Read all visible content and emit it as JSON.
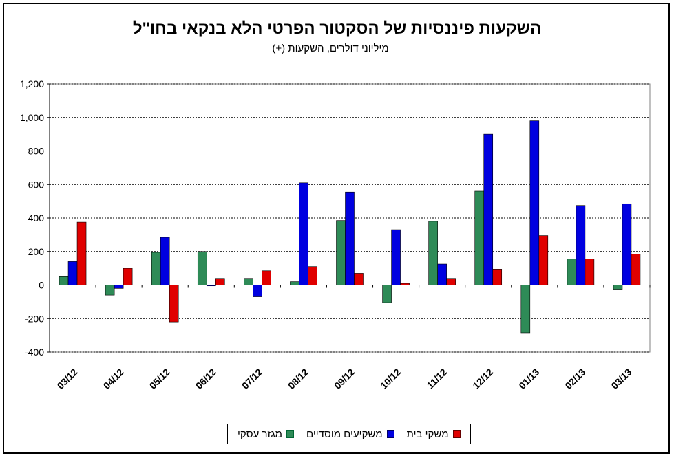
{
  "chart_data": {
    "type": "bar",
    "title": "השקעות פיננסיות של הסקטור הפרטי הלא בנקאי בחו\"ל",
    "subtitle": "מיליוני דולרים, השקעות (+)",
    "categories": [
      "03/12",
      "04/12",
      "05/12",
      "06/12",
      "07/12",
      "08/12",
      "09/12",
      "10/12",
      "11/12",
      "12/12",
      "01/13",
      "02/13",
      "03/13"
    ],
    "series": [
      {
        "name": "מגזר עסקי",
        "color": "#2e8b57",
        "values": [
          50,
          -60,
          195,
          200,
          40,
          20,
          385,
          -105,
          380,
          560,
          -285,
          155,
          -25
        ]
      },
      {
        "name": "משקיעים מוסדיים",
        "color": "#0000e0",
        "values": [
          140,
          -20,
          285,
          -5,
          -70,
          610,
          555,
          330,
          125,
          900,
          980,
          475,
          485
        ]
      },
      {
        "name": "משקי בית",
        "color": "#e00000",
        "values": [
          375,
          100,
          -220,
          40,
          85,
          110,
          70,
          10,
          40,
          95,
          295,
          155,
          185
        ]
      }
    ],
    "ylim": [
      -400,
      1200
    ],
    "yticks": [
      "-400",
      "-200",
      "0",
      "200",
      "400",
      "600",
      "800",
      "1,000",
      "1,200"
    ],
    "ytick_values": [
      -400,
      -200,
      0,
      200,
      400,
      600,
      800,
      1000,
      1200
    ],
    "grid": true,
    "legend_position": "bottom"
  }
}
